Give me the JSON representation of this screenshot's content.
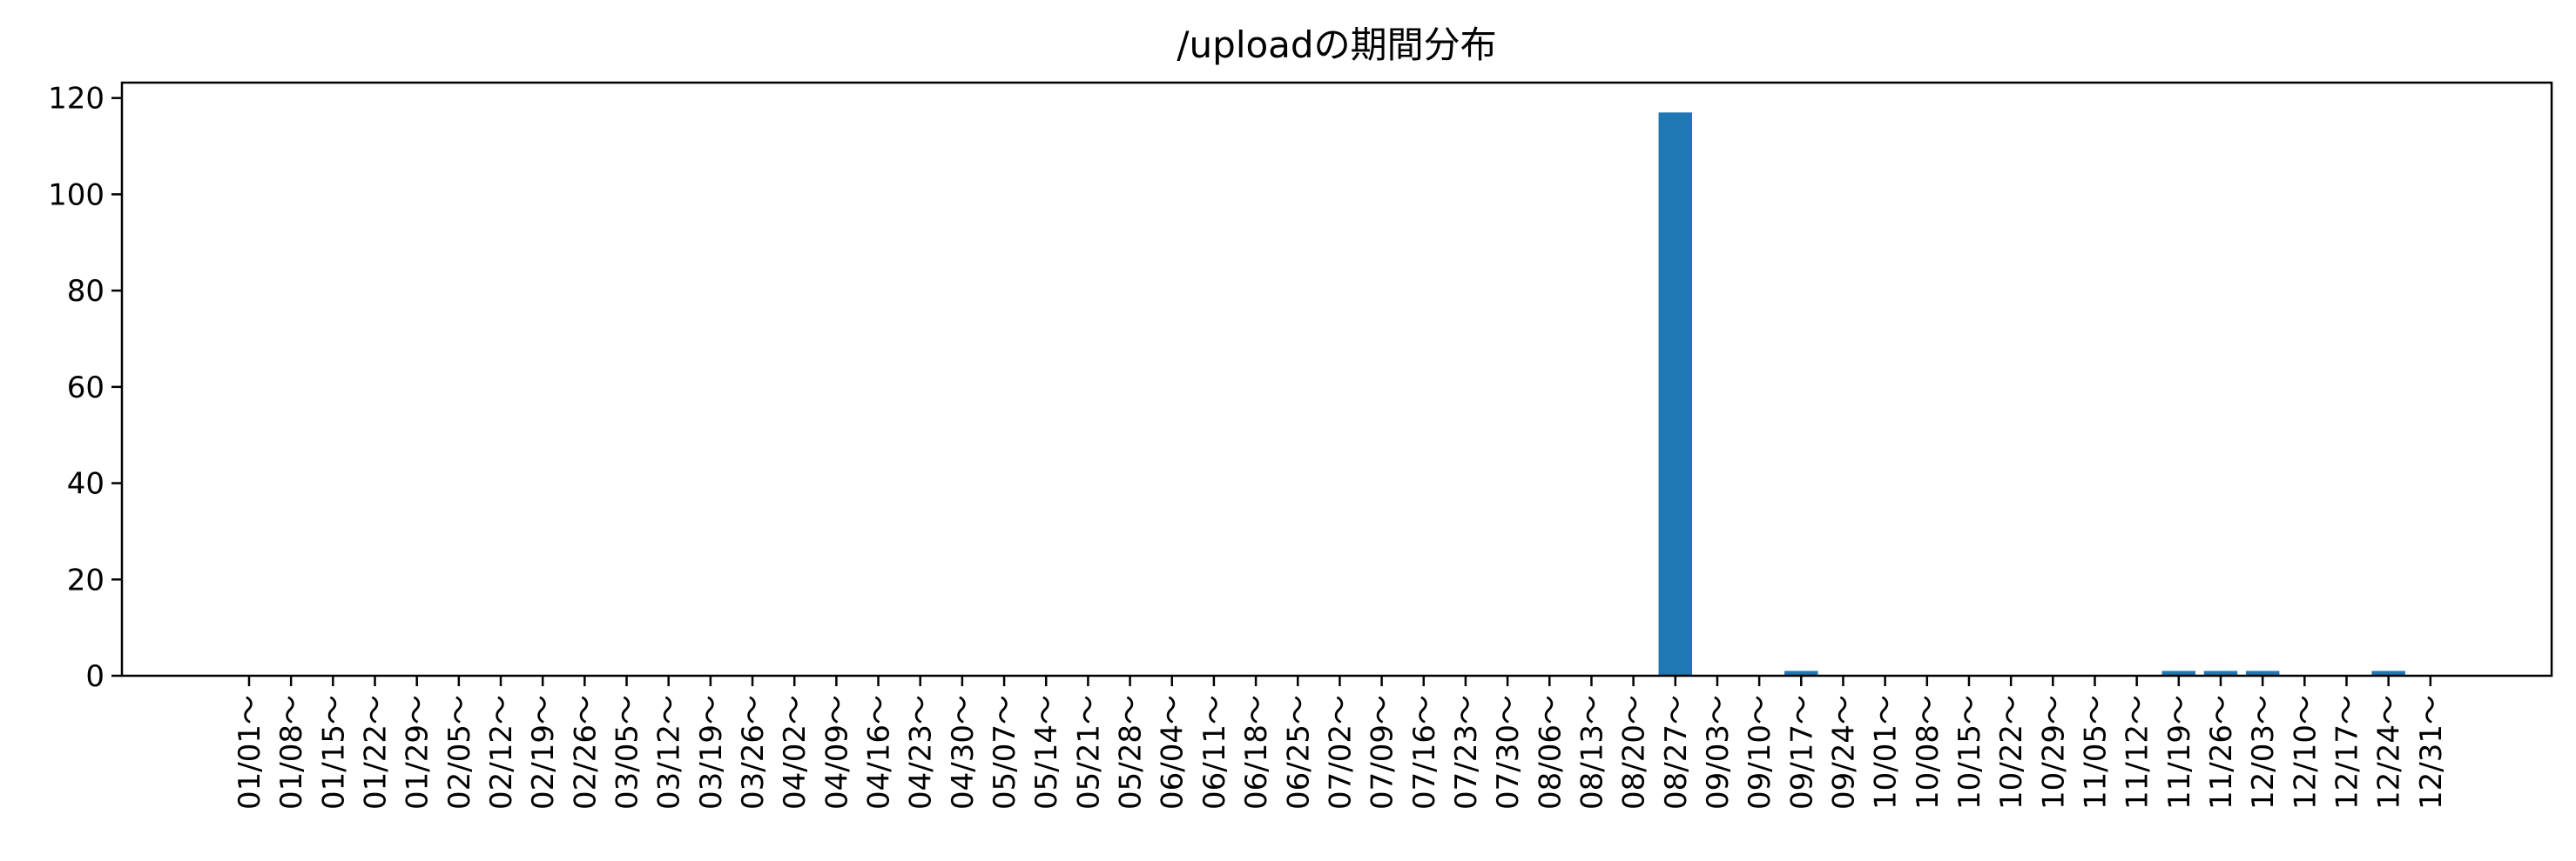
{
  "chart_data": {
    "type": "bar",
    "title": "/uploadの期間分布",
    "xlabel": "",
    "ylabel": "",
    "ylim": [
      0,
      123.2
    ],
    "yticks": [
      0,
      20,
      40,
      60,
      80,
      100,
      120
    ],
    "bar_color": "#1f77b4",
    "grid": false,
    "categories": [
      "01/01～",
      "01/08～",
      "01/15～",
      "01/22～",
      "01/29～",
      "02/05～",
      "02/12～",
      "02/19～",
      "02/26～",
      "03/05～",
      "03/12～",
      "03/19～",
      "03/26～",
      "04/02～",
      "04/09～",
      "04/16～",
      "04/23～",
      "04/30～",
      "05/07～",
      "05/14～",
      "05/21～",
      "05/28～",
      "06/04～",
      "06/11～",
      "06/18～",
      "06/25～",
      "07/02～",
      "07/09～",
      "07/16～",
      "07/23～",
      "07/30～",
      "08/06～",
      "08/13～",
      "08/20～",
      "08/27～",
      "09/03～",
      "09/10～",
      "09/17～",
      "09/24～",
      "10/01～",
      "10/08～",
      "10/15～",
      "10/22～",
      "10/29～",
      "11/05～",
      "11/12～",
      "11/19～",
      "11/26～",
      "12/03～",
      "12/10～",
      "12/17～",
      "12/24～",
      "12/31～"
    ],
    "values": [
      0,
      0,
      0,
      0,
      0,
      0,
      0,
      0,
      0,
      0,
      0,
      0,
      0,
      0,
      0,
      0,
      0,
      0,
      0,
      0,
      0,
      0,
      0,
      0,
      0,
      0,
      0,
      0,
      0,
      0,
      0,
      0,
      0,
      0,
      117,
      0,
      0,
      1,
      0,
      0,
      0,
      0,
      0,
      0,
      0,
      0,
      1,
      1,
      1,
      0,
      0,
      1,
      0
    ]
  }
}
